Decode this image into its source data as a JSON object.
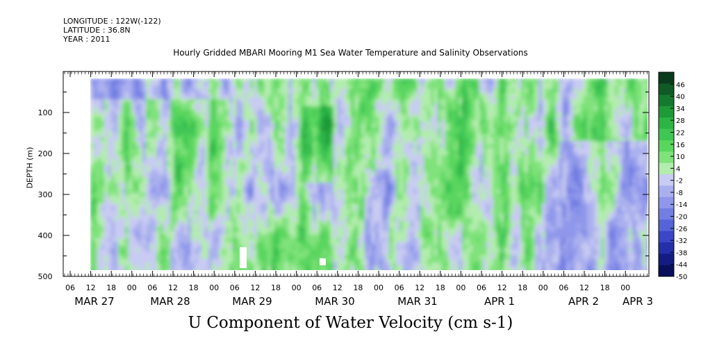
{
  "header": {
    "longitude": "LONGITUDE : 122W(-122)",
    "latitude": "LATITUDE : 36.8N",
    "year": "YEAR : 2011"
  },
  "chart_data": {
    "type": "heatmap",
    "title": "Hourly Gridded MBARI Mooring M1 Sea Water Temperature and Salinity Observations",
    "xlabel": "U Component of Water Velocity (cm s-1)",
    "ylabel": "DEPTH (m)",
    "ylim": [
      500,
      0
    ],
    "yticks": [
      100,
      200,
      300,
      400,
      500
    ],
    "ytick_labels": [
      "100",
      "200",
      "300",
      "400",
      "500"
    ],
    "x_hours": [
      "06",
      "12",
      "18",
      "00",
      "06",
      "12",
      "18",
      "00",
      "06",
      "12",
      "18",
      "00",
      "06",
      "12",
      "18",
      "00",
      "06",
      "12",
      "18",
      "00",
      "06",
      "12",
      "18",
      "00",
      "06",
      "12",
      "18",
      "00"
    ],
    "x_days": [
      "MAR 27",
      "MAR 28",
      "MAR 29",
      "MAR 30",
      "MAR 31",
      "APR   1",
      "APR   2",
      "APR   3"
    ],
    "colorbar_labels": [
      "46",
      "40",
      "34",
      "28",
      "22",
      "16",
      "10",
      "4",
      "-2",
      "-8",
      "-14",
      "-20",
      "-26",
      "-32",
      "-38",
      "-44",
      "-50"
    ],
    "colorbar_range": [
      -50,
      52
    ],
    "colorbar_colors": [
      "#0a3a1c",
      "#0f5a26",
      "#157a2e",
      "#1f9a38",
      "#2cb444",
      "#3fc654",
      "#5ad65e",
      "#7fe27a",
      "#b2ecae",
      "#c8cbf2",
      "#aab0ee",
      "#8f97ea",
      "#737ee2",
      "#5664d8",
      "#3b47c6",
      "#2330a8",
      "#141c84",
      "#0a0f5a"
    ]
  }
}
